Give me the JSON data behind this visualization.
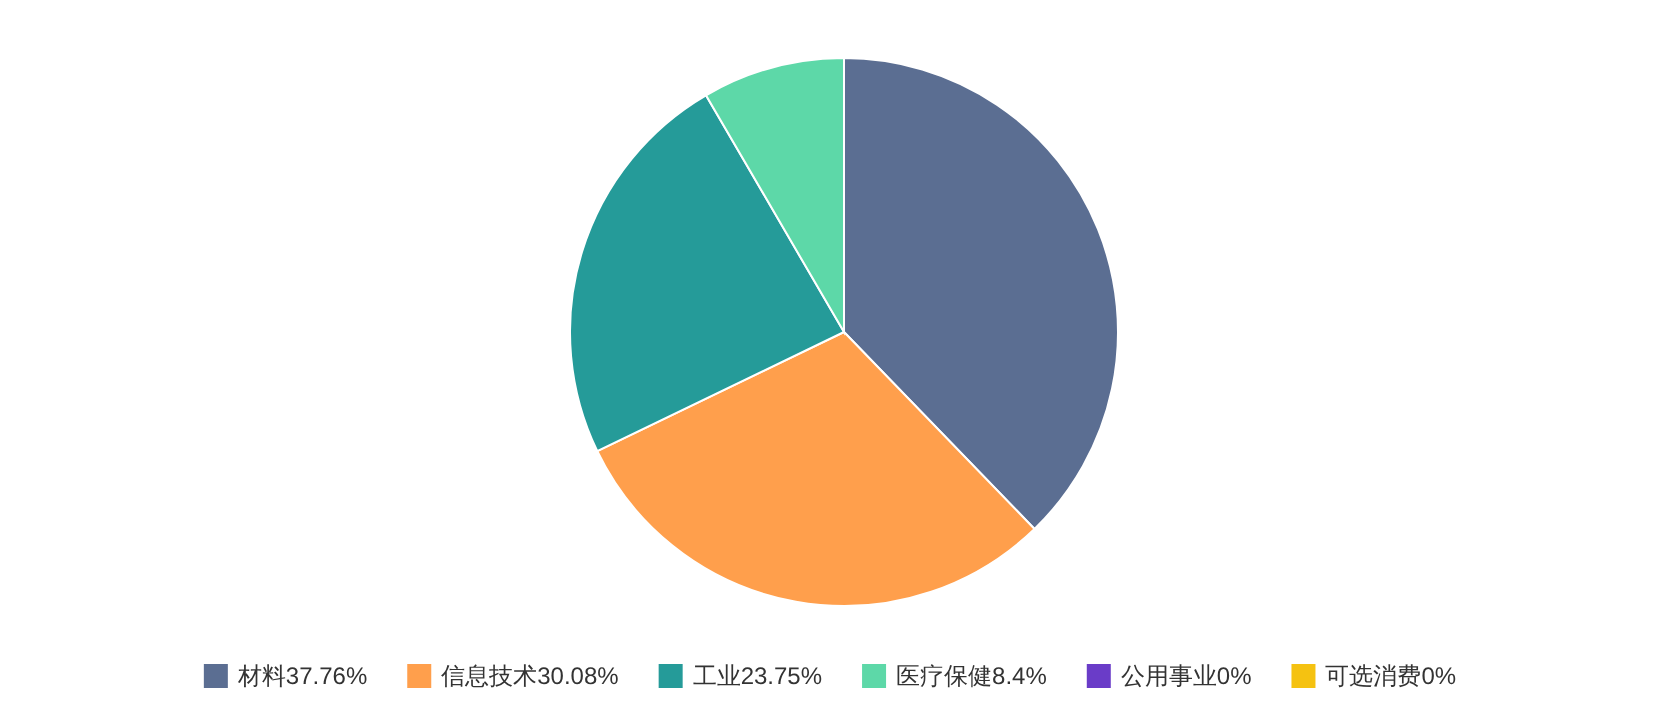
{
  "chart_data": {
    "type": "pie",
    "categories": [
      "材料",
      "信息技术",
      "工业",
      "医疗保健",
      "公用事业",
      "可选消费"
    ],
    "values": [
      37.76,
      30.08,
      23.75,
      8.4,
      0,
      0
    ],
    "value_labels": [
      "37.76%",
      "30.08%",
      "23.75%",
      "8.4%",
      "0%",
      "0%"
    ],
    "colors": [
      "#5b6e92",
      "#ff9f4c",
      "#259b99",
      "#5dd8a8",
      "#6a3cc8",
      "#f5c211"
    ],
    "legend": "bottom"
  }
}
